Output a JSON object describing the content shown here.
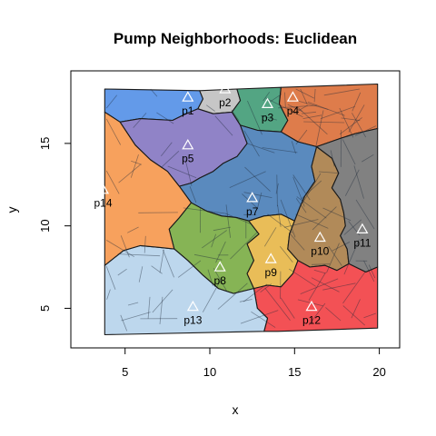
{
  "chart_data": {
    "type": "map",
    "title": "Pump Neighborhoods: Euclidean",
    "xlabel": "x",
    "ylabel": "y",
    "xlim": [
      1.8,
      21.2
    ],
    "ylim": [
      2.6,
      19.4
    ],
    "x_ticks": [
      5,
      10,
      15,
      20
    ],
    "y_ticks": [
      5,
      10,
      15
    ],
    "pumps": [
      {
        "id": "p1",
        "x": 8.7,
        "y": 17.8,
        "color": "#5b95e8"
      },
      {
        "id": "p2",
        "x": 10.9,
        "y": 18.3,
        "color": "#c3c3c3"
      },
      {
        "id": "p3",
        "x": 13.4,
        "y": 17.4,
        "color": "#4aa07c"
      },
      {
        "id": "p4",
        "x": 14.9,
        "y": 17.8,
        "color": "#dc7541"
      },
      {
        "id": "p5",
        "x": 8.7,
        "y": 14.9,
        "color": "#8a7cc4"
      },
      {
        "id": "p7",
        "x": 12.5,
        "y": 11.7,
        "color": "#5184bb"
      },
      {
        "id": "p8",
        "x": 10.6,
        "y": 7.5,
        "color": "#7fb04c"
      },
      {
        "id": "p9",
        "x": 13.6,
        "y": 8.0,
        "color": "#e8b94f"
      },
      {
        "id": "p10",
        "x": 16.5,
        "y": 9.3,
        "color": "#ad8450"
      },
      {
        "id": "p11",
        "x": 19.0,
        "y": 9.8,
        "color": "#7a7a7a"
      },
      {
        "id": "p12",
        "x": 16.0,
        "y": 5.1,
        "color": "#f2484c"
      },
      {
        "id": "p13",
        "x": 9.0,
        "y": 5.1,
        "color": "#b9d5ec"
      },
      {
        "id": "p14",
        "x": 3.7,
        "y": 12.2,
        "color": "#f79c54"
      }
    ],
    "regions": [
      {
        "pump": "p1",
        "color": "#5b95e8",
        "polygon": [
          [
            3.8,
            18.3
          ],
          [
            9.4,
            18.2
          ],
          [
            9.6,
            17.7
          ],
          [
            9.3,
            17.1
          ],
          [
            8.6,
            16.8
          ],
          [
            7.8,
            16.4
          ],
          [
            5.9,
            16.5
          ],
          [
            4.7,
            16.3
          ],
          [
            3.8,
            16.9
          ]
        ]
      },
      {
        "pump": "p2",
        "color": "#c3c3c3",
        "polygon": [
          [
            9.4,
            18.2
          ],
          [
            11.6,
            18.3
          ],
          [
            11.8,
            17.6
          ],
          [
            11.3,
            16.9
          ],
          [
            10.2,
            16.8
          ],
          [
            9.3,
            17.1
          ],
          [
            9.6,
            17.7
          ]
        ]
      },
      {
        "pump": "p3",
        "color": "#4aa07c",
        "polygon": [
          [
            11.6,
            18.3
          ],
          [
            14.2,
            18.4
          ],
          [
            14.1,
            17.4
          ],
          [
            14.6,
            16.4
          ],
          [
            14.2,
            15.7
          ],
          [
            12.8,
            15.8
          ],
          [
            11.8,
            16.1
          ],
          [
            11.3,
            16.9
          ],
          [
            11.8,
            17.6
          ]
        ]
      },
      {
        "pump": "p4",
        "color": "#dc7541",
        "polygon": [
          [
            14.2,
            18.4
          ],
          [
            19.9,
            18.6
          ],
          [
            19.9,
            15.9
          ],
          [
            18.6,
            15.6
          ],
          [
            17.7,
            15.3
          ],
          [
            16.3,
            14.8
          ],
          [
            15.2,
            15.1
          ],
          [
            14.2,
            15.7
          ],
          [
            14.6,
            16.4
          ],
          [
            14.1,
            17.4
          ]
        ]
      },
      {
        "pump": "p5",
        "color": "#8a7cc4",
        "polygon": [
          [
            4.7,
            16.3
          ],
          [
            5.9,
            16.5
          ],
          [
            7.8,
            16.4
          ],
          [
            8.6,
            16.8
          ],
          [
            9.3,
            17.1
          ],
          [
            10.2,
            16.8
          ],
          [
            11.3,
            16.9
          ],
          [
            11.8,
            16.1
          ],
          [
            12.2,
            15.0
          ],
          [
            11.6,
            14.2
          ],
          [
            10.8,
            13.8
          ],
          [
            10.2,
            13.3
          ],
          [
            9.4,
            12.9
          ],
          [
            8.9,
            12.6
          ],
          [
            8.2,
            12.4
          ],
          [
            7.5,
            13.3
          ],
          [
            6.5,
            14.0
          ],
          [
            5.6,
            14.9
          ]
        ]
      },
      {
        "pump": "p7",
        "color": "#5184bb",
        "polygon": [
          [
            12.2,
            15.0
          ],
          [
            11.8,
            16.1
          ],
          [
            12.8,
            15.8
          ],
          [
            14.2,
            15.7
          ],
          [
            15.2,
            15.1
          ],
          [
            16.3,
            14.8
          ],
          [
            16.0,
            13.6
          ],
          [
            16.2,
            12.7
          ],
          [
            15.6,
            11.8
          ],
          [
            15.3,
            11.1
          ],
          [
            15.0,
            10.3
          ],
          [
            14.2,
            10.7
          ],
          [
            13.2,
            10.6
          ],
          [
            12.3,
            10.3
          ],
          [
            11.6,
            10.5
          ],
          [
            10.7,
            10.6
          ],
          [
            9.8,
            10.9
          ],
          [
            8.9,
            11.4
          ],
          [
            8.2,
            12.4
          ],
          [
            8.9,
            12.6
          ],
          [
            9.4,
            12.9
          ],
          [
            10.2,
            13.3
          ],
          [
            10.8,
            13.8
          ],
          [
            11.6,
            14.2
          ]
        ]
      },
      {
        "pump": "p8",
        "color": "#7fb04c",
        "polygon": [
          [
            8.9,
            11.4
          ],
          [
            9.8,
            10.9
          ],
          [
            10.7,
            10.6
          ],
          [
            11.6,
            10.5
          ],
          [
            12.3,
            10.3
          ],
          [
            12.9,
            9.5
          ],
          [
            12.2,
            8.9
          ],
          [
            12.6,
            7.9
          ],
          [
            12.2,
            7.1
          ],
          [
            12.6,
            6.2
          ],
          [
            11.4,
            5.9
          ],
          [
            10.5,
            6.2
          ],
          [
            9.6,
            7.0
          ],
          [
            8.7,
            7.9
          ],
          [
            7.9,
            8.6
          ],
          [
            7.6,
            9.8
          ],
          [
            8.2,
            10.5
          ]
        ]
      },
      {
        "pump": "p9",
        "color": "#e8b94f",
        "polygon": [
          [
            12.3,
            10.3
          ],
          [
            13.2,
            10.6
          ],
          [
            14.2,
            10.7
          ],
          [
            15.0,
            10.3
          ],
          [
            14.7,
            9.5
          ],
          [
            14.6,
            8.6
          ],
          [
            15.2,
            7.9
          ],
          [
            14.9,
            7.1
          ],
          [
            14.2,
            6.3
          ],
          [
            13.4,
            6.4
          ],
          [
            12.6,
            6.2
          ],
          [
            12.2,
            7.1
          ],
          [
            12.6,
            7.9
          ],
          [
            12.2,
            8.9
          ],
          [
            12.9,
            9.5
          ]
        ]
      },
      {
        "pump": "p10",
        "color": "#ad8450",
        "polygon": [
          [
            16.3,
            14.8
          ],
          [
            17.2,
            14.1
          ],
          [
            17.6,
            13.2
          ],
          [
            17.2,
            12.3
          ],
          [
            17.7,
            11.6
          ],
          [
            17.9,
            10.8
          ],
          [
            18.0,
            10.0
          ],
          [
            17.7,
            9.4
          ],
          [
            18.1,
            8.6
          ],
          [
            18.2,
            7.7
          ],
          [
            17.5,
            7.3
          ],
          [
            16.8,
            7.6
          ],
          [
            15.9,
            7.5
          ],
          [
            15.2,
            7.9
          ],
          [
            14.6,
            8.6
          ],
          [
            14.7,
            9.5
          ],
          [
            15.0,
            10.3
          ],
          [
            15.3,
            11.1
          ],
          [
            15.6,
            11.8
          ],
          [
            16.2,
            12.7
          ],
          [
            16.0,
            13.6
          ]
        ]
      },
      {
        "pump": "p11",
        "color": "#7a7a7a",
        "polygon": [
          [
            17.7,
            15.3
          ],
          [
            18.6,
            15.6
          ],
          [
            19.9,
            15.9
          ],
          [
            19.9,
            7.5
          ],
          [
            19.2,
            7.2
          ],
          [
            18.2,
            7.7
          ],
          [
            18.1,
            8.6
          ],
          [
            17.7,
            9.4
          ],
          [
            18.0,
            10.0
          ],
          [
            17.9,
            10.8
          ],
          [
            17.7,
            11.6
          ],
          [
            17.2,
            12.3
          ],
          [
            17.6,
            13.2
          ],
          [
            17.2,
            14.1
          ],
          [
            16.3,
            14.8
          ]
        ]
      },
      {
        "pump": "p12",
        "color": "#f2484c",
        "polygon": [
          [
            14.2,
            6.3
          ],
          [
            14.9,
            7.1
          ],
          [
            15.2,
            7.9
          ],
          [
            15.9,
            7.5
          ],
          [
            16.8,
            7.6
          ],
          [
            17.5,
            7.3
          ],
          [
            18.2,
            7.7
          ],
          [
            19.2,
            7.2
          ],
          [
            19.9,
            7.5
          ],
          [
            19.9,
            3.8
          ],
          [
            14.0,
            3.6
          ],
          [
            13.2,
            3.6
          ],
          [
            13.4,
            4.4
          ],
          [
            12.8,
            5.0
          ],
          [
            12.6,
            6.2
          ],
          [
            13.4,
            6.4
          ]
        ]
      },
      {
        "pump": "p13",
        "color": "#b9d5ec",
        "polygon": [
          [
            3.8,
            7.6
          ],
          [
            4.9,
            8.5
          ],
          [
            5.9,
            8.8
          ],
          [
            7.0,
            8.7
          ],
          [
            7.9,
            8.6
          ],
          [
            8.7,
            7.9
          ],
          [
            9.6,
            7.0
          ],
          [
            10.5,
            6.2
          ],
          [
            11.4,
            5.9
          ],
          [
            12.6,
            6.2
          ],
          [
            12.8,
            5.0
          ],
          [
            13.4,
            4.4
          ],
          [
            13.2,
            3.6
          ],
          [
            3.8,
            3.4
          ]
        ]
      },
      {
        "pump": "p14",
        "color": "#f79c54",
        "polygon": [
          [
            3.8,
            16.9
          ],
          [
            4.7,
            16.3
          ],
          [
            5.6,
            14.9
          ],
          [
            6.5,
            14.0
          ],
          [
            7.5,
            13.3
          ],
          [
            8.2,
            12.4
          ],
          [
            8.9,
            11.4
          ],
          [
            8.2,
            10.5
          ],
          [
            7.6,
            9.8
          ],
          [
            7.9,
            8.6
          ],
          [
            7.0,
            8.7
          ],
          [
            5.9,
            8.8
          ],
          [
            4.9,
            8.5
          ],
          [
            3.8,
            7.6
          ]
        ]
      }
    ]
  }
}
